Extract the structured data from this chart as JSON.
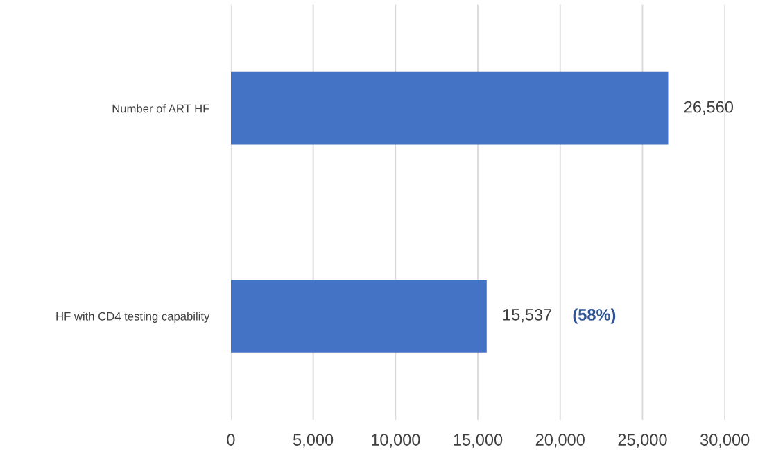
{
  "chart_data": {
    "type": "bar",
    "orientation": "horizontal",
    "categories": [
      "Number of ART HF",
      "HF with CD4 testing capability"
    ],
    "values": [
      26560,
      15537
    ],
    "color": "#4472c4",
    "xlim": [
      0,
      30000
    ],
    "xticks": [
      {
        "value": 0,
        "label": "0"
      },
      {
        "value": 5000,
        "label": "5,000"
      },
      {
        "value": 10000,
        "label": "10,000"
      },
      {
        "value": 15000,
        "label": "15,000"
      },
      {
        "value": 20000,
        "label": "20,000"
      },
      {
        "value": 25000,
        "label": "25,000"
      },
      {
        "value": 30000,
        "label": "30,000"
      }
    ],
    "value_labels": [
      "26,560",
      "15,537"
    ],
    "annotations": [
      "(58%)"
    ],
    "grid": "x"
  }
}
